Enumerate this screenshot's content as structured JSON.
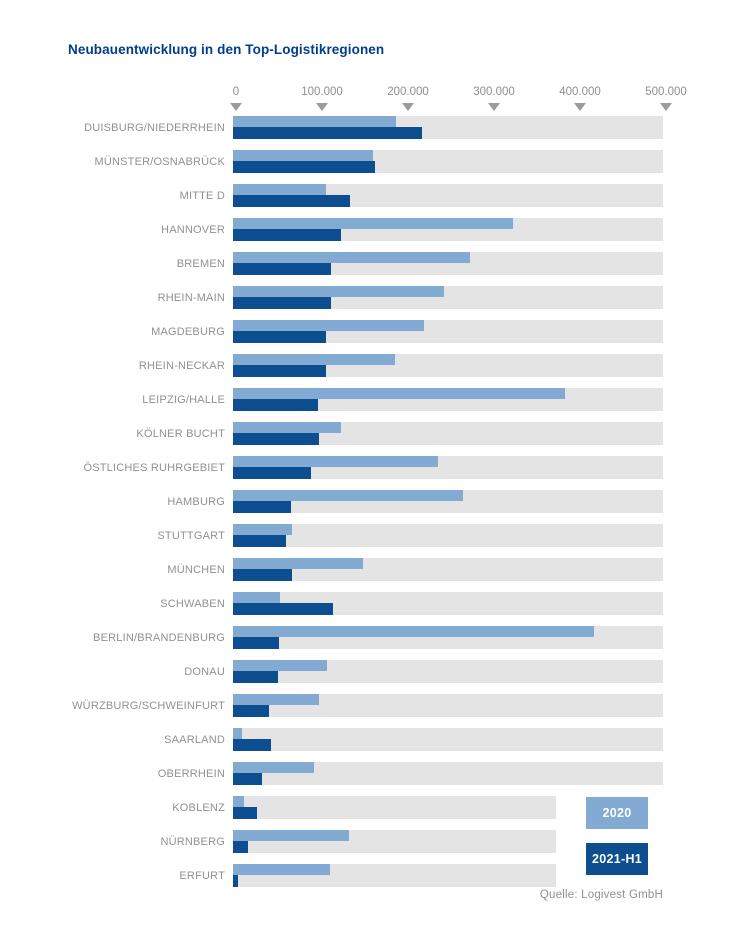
{
  "title": "Neubauentwicklung in den Top-Logistikregionen",
  "source": "Quelle: Logivest GmbH",
  "legend": [
    {
      "label": "2020",
      "color": "#82aad3"
    },
    {
      "label": "2021-H1",
      "color": "#0c4e90"
    }
  ],
  "colors": {
    "series_2020": "#82aad3",
    "series_2021_h1": "#0c4e90",
    "track": "#e4e4e4",
    "title_text": "#003e8d",
    "label_text": "#8f9193",
    "tick_marker": "#9b9b9b",
    "background": "#ffffff"
  },
  "chart_data": {
    "type": "bar",
    "orientation": "horizontal",
    "title": "Neubauentwicklung in den Top-Logistikregionen",
    "xlabel": "",
    "ylabel": "",
    "xlim": [
      0,
      500000
    ],
    "grid": false,
    "legend_position": "bottom-right",
    "x_ticks": [
      {
        "label": "0",
        "value": 0
      },
      {
        "label": "100.000",
        "value": 100000
      },
      {
        "label": "200.000",
        "value": 200000
      },
      {
        "label": "300.000",
        "value": 300000
      },
      {
        "label": "400.000",
        "value": 400000
      },
      {
        "label": "500.000",
        "value": 500000
      }
    ],
    "categories": [
      "DUISBURG/NIEDERRHEIN",
      "MÜNSTER/OSNABRÜCK",
      "MITTE D",
      "HANNOVER",
      "BREMEN",
      "RHEIN-MAIN",
      "MAGDEBURG",
      "RHEIN-NECKAR",
      "LEIPZIG/HALLE",
      "KÖLNER BUCHT",
      "ÖSTLICHES RUHRGEBIET",
      "HAMBURG",
      "STUTTGART",
      "MÜNCHEN",
      "SCHWABEN",
      "BERLIN/BRANDENBURG",
      "DONAU",
      "WÜRZBURG/SCHWEINFURT",
      "SAARLAND",
      "OBERRHEIN",
      "KOBLENZ",
      "NÜRNBERG",
      "ERFURT"
    ],
    "series": [
      {
        "name": "2020",
        "color": "#82aad3",
        "values": [
          190000,
          163000,
          108000,
          325000,
          275000,
          245000,
          222000,
          188000,
          386000,
          125000,
          238000,
          268000,
          69000,
          151000,
          55000,
          420000,
          109000,
          100000,
          11000,
          94000,
          13000,
          135000,
          113000
        ]
      },
      {
        "name": "2021-H1",
        "color": "#0c4e90",
        "values": [
          220000,
          165000,
          136000,
          125000,
          114000,
          114000,
          108000,
          108000,
          99000,
          100000,
          91000,
          68000,
          62000,
          69000,
          116000,
          54000,
          52000,
          42000,
          44000,
          34000,
          28000,
          18000,
          6000
        ]
      }
    ],
    "track_max": [
      500000,
      500000,
      500000,
      500000,
      500000,
      500000,
      500000,
      500000,
      500000,
      500000,
      500000,
      500000,
      500000,
      500000,
      500000,
      500000,
      500000,
      500000,
      500000,
      500000,
      375000,
      375000,
      375000
    ]
  }
}
